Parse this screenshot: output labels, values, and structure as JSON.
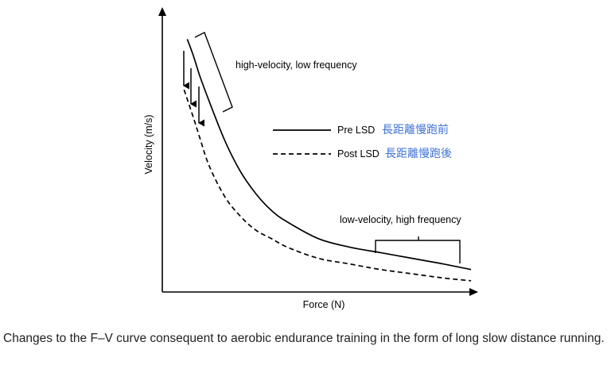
{
  "caption": "Changes to the F–V curve consequent to aerobic endurance training in the form of long slow distance running.",
  "chart_data": {
    "type": "line",
    "title": "",
    "xlabel": "Force (N)",
    "ylabel": "Velocity (m/s)",
    "xlim": [
      0,
      100
    ],
    "ylim": [
      0,
      100
    ],
    "x_ticks_shown": false,
    "y_ticks_shown": false,
    "grid": false,
    "legend_position": "center-right",
    "series": [
      {
        "name": "Pre LSD",
        "name_cjk": "長距離慢跑前",
        "line_style": "solid",
        "x": [
          8,
          10,
          12,
          15,
          20,
          25,
          30,
          35,
          40,
          50,
          60,
          70,
          80,
          90,
          99
        ],
        "y": [
          90,
          84,
          77,
          68,
          54,
          43,
          35,
          29,
          25,
          19,
          16,
          14,
          12,
          10,
          8
        ]
      },
      {
        "name": "Post LSD",
        "name_cjk": "長距離慢跑後",
        "line_style": "dashed",
        "x": [
          7,
          10,
          12,
          15,
          20,
          25,
          30,
          35,
          40,
          50,
          60,
          70,
          80,
          90,
          99
        ],
        "y": [
          72,
          62,
          55,
          45,
          34,
          27,
          22,
          19,
          16,
          12,
          10,
          8,
          6.5,
          5,
          4
        ]
      }
    ],
    "annotations": [
      "high-velocity, low frequency",
      "low-velocity, high frequency"
    ],
    "colors": {
      "line": "#000000",
      "cjk_label": "#3f72d6"
    }
  }
}
